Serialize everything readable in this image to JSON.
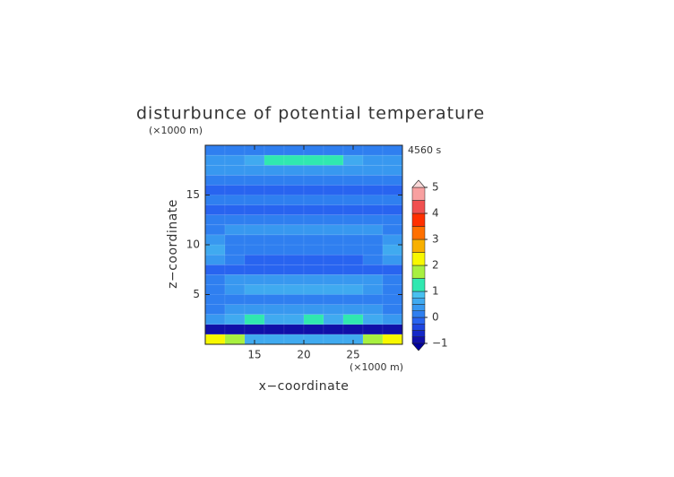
{
  "chart_data": {
    "type": "contour",
    "title": "disturbunce of potential temperature",
    "time_label": "4560 s",
    "xlabel": "x−coordinate",
    "ylabel": "z−coordinate",
    "xunit": "(×1000 m)",
    "yunit": "(×1000 m)",
    "xlim": [
      10,
      30
    ],
    "ylim": [
      0,
      20
    ],
    "xticks": [
      15,
      20,
      25
    ],
    "yticks": [
      5,
      10,
      15
    ],
    "x": [
      11,
      13,
      15,
      17,
      19,
      21,
      23,
      25,
      27,
      29
    ],
    "z": [
      0.5,
      1.5,
      2.5,
      3.5,
      4.5,
      5.5,
      6.5,
      7.5,
      8.5,
      9.5,
      10.5,
      11.5,
      12.5,
      13.5,
      14.5,
      15.5,
      16.5,
      17.5,
      18.5,
      19.5
    ],
    "values": [
      [
        2.2,
        1.6,
        0.6,
        0.5,
        0.5,
        0.5,
        0.5,
        0.6,
        1.6,
        2.2
      ],
      [
        -0.9,
        -0.9,
        -0.9,
        -0.9,
        -0.9,
        -0.9,
        -0.9,
        -0.9,
        -0.9,
        -0.9
      ],
      [
        0.3,
        0.5,
        1.1,
        0.5,
        0.6,
        1.1,
        0.5,
        1.1,
        0.5,
        0.3
      ],
      [
        0.2,
        0.3,
        0.4,
        0.4,
        0.4,
        0.4,
        0.4,
        0.4,
        0.3,
        0.2
      ],
      [
        0.1,
        0.1,
        0.1,
        0.1,
        0.1,
        0.1,
        0.1,
        0.1,
        0.1,
        0.1
      ],
      [
        0.2,
        0.4,
        0.5,
        0.5,
        0.5,
        0.5,
        0.5,
        0.5,
        0.4,
        0.2
      ],
      [
        0.1,
        0.3,
        0.3,
        0.3,
        0.3,
        0.3,
        0.3,
        0.3,
        0.3,
        0.1
      ],
      [
        -0.1,
        -0.1,
        -0.1,
        -0.1,
        -0.1,
        -0.1,
        -0.1,
        -0.1,
        -0.1,
        -0.1
      ],
      [
        0.4,
        0.1,
        -0.1,
        -0.1,
        -0.1,
        -0.1,
        -0.1,
        -0.1,
        0.1,
        0.4
      ],
      [
        0.5,
        0.2,
        0,
        0,
        0,
        0,
        0,
        0,
        0.2,
        0.5
      ],
      [
        0.3,
        0.2,
        0.1,
        0.1,
        0.1,
        0.1,
        0.1,
        0.1,
        0.2,
        0.3
      ],
      [
        0.1,
        0.3,
        0.3,
        0.3,
        0.3,
        0.3,
        0.3,
        0.3,
        0.3,
        0.1
      ],
      [
        0.1,
        0.1,
        0.1,
        0.1,
        0.1,
        0.1,
        0.1,
        0.1,
        0.1,
        0.1
      ],
      [
        -0.1,
        -0.1,
        -0.1,
        -0.1,
        -0.1,
        -0.1,
        -0.1,
        -0.1,
        -0.1,
        -0.1
      ],
      [
        0.2,
        0.2,
        0.2,
        0.2,
        0.2,
        0.2,
        0.2,
        0.2,
        0.2,
        0.2
      ],
      [
        -0.2,
        -0.2,
        -0.2,
        -0.2,
        -0.2,
        -0.2,
        -0.2,
        -0.2,
        -0.2,
        -0.2
      ],
      [
        0.1,
        0.1,
        0.1,
        0.1,
        0.1,
        0.1,
        0.1,
        0.1,
        0.1,
        0.1
      ],
      [
        0.3,
        0.3,
        0.3,
        0.3,
        0.3,
        0.3,
        0.3,
        0.3,
        0.3,
        0.3
      ],
      [
        0.3,
        0.4,
        0.5,
        1.1,
        1.2,
        1.2,
        1.1,
        0.5,
        0.4,
        0.3
      ],
      [
        0.1,
        0.1,
        0.1,
        0.1,
        0.1,
        0.1,
        0.1,
        0.1,
        0.1,
        0.1
      ]
    ],
    "levels": [
      -1,
      -0.75,
      -0.5,
      -0.25,
      0,
      0.25,
      0.5,
      0.75,
      1,
      1.5,
      2,
      2.5,
      3,
      3.5,
      4,
      4.5,
      5
    ],
    "colors": [
      "#1010a8",
      "#1428c8",
      "#1e46e0",
      "#2864f0",
      "#2f7ff0",
      "#3898f0",
      "#40aaf0",
      "#48c0f0",
      "#30e8b0",
      "#a8f040",
      "#f8f800",
      "#f8b000",
      "#ff7000",
      "#ff3000",
      "#f05050",
      "#f8a0a0"
    ],
    "under_color": "#0000a0",
    "over_color": "#fad8d8",
    "cbticks": [
      {
        "value": -1,
        "label": "−1"
      },
      0,
      1,
      2,
      3,
      4,
      5
    ]
  }
}
